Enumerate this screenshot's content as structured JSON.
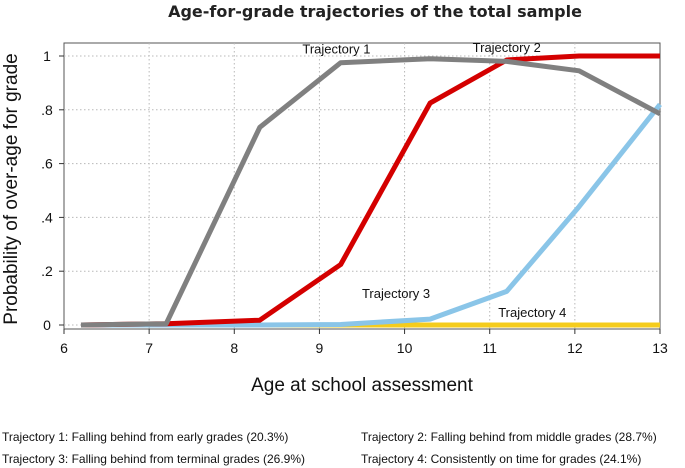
{
  "chart_data": {
    "type": "line",
    "title": "Age-for-grade trajectories of the total sample",
    "xlabel": "Age at school assessment",
    "ylabel": "Probability of over-age for grade",
    "xlim": [
      6,
      13
    ],
    "ylim": [
      0,
      1
    ],
    "xticks": [
      6,
      7,
      8,
      9,
      10,
      11,
      12,
      13
    ],
    "xtick_labels": [
      "6",
      "7",
      "8",
      "9",
      "10",
      "11",
      "12",
      "13"
    ],
    "yticks": [
      0,
      0.2,
      0.4,
      0.6,
      0.8,
      1
    ],
    "ytick_labels": [
      "0",
      ".2",
      ".4",
      ".6",
      ".8",
      "1"
    ],
    "grid": true,
    "series": [
      {
        "name": "Trajectory 1",
        "label_main": "Trajectory",
        "label_num": "1",
        "color": "#808080",
        "x": [
          6.2,
          7.2,
          8.3,
          9.25,
          10.3,
          11.2,
          12.05,
          13.0
        ],
        "y": [
          0.0,
          0.005,
          0.735,
          0.975,
          0.99,
          0.98,
          0.945,
          0.785
        ]
      },
      {
        "name": "Trajectory 2",
        "label_main": "Trajectory",
        "label_num": "2",
        "color": "#d40000",
        "x": [
          6.2,
          7.2,
          8.3,
          9.25,
          10.3,
          11.2,
          12.05,
          13.0
        ],
        "y": [
          0.0,
          0.005,
          0.018,
          0.225,
          0.825,
          0.985,
          1.0,
          1.0
        ]
      },
      {
        "name": "Trajectory 3",
        "label_main": "Trajectory",
        "label_num": "3",
        "color": "#8ac5e8",
        "x": [
          6.2,
          7.2,
          8.3,
          9.25,
          10.3,
          11.2,
          12.05,
          13.0
        ],
        "y": [
          0.0,
          0.0,
          0.0,
          0.002,
          0.022,
          0.125,
          0.44,
          0.82
        ]
      },
      {
        "name": "Trajectory 4",
        "label_main": "Trajectory",
        "label_num": "4",
        "color": "#f5cc1c",
        "x": [
          6.2,
          7.2,
          8.3,
          9.25,
          10.3,
          11.2,
          12.05,
          13.0
        ],
        "y": [
          0.0,
          0.0,
          0.0,
          0.0,
          0.0,
          0.0,
          0.0,
          0.0
        ]
      }
    ],
    "annotations": [
      {
        "series": "Trajectory 1",
        "x": 9.2,
        "y": 1.01
      },
      {
        "series": "Trajectory 2",
        "x": 11.2,
        "y": 1.015
      },
      {
        "series": "Trajectory 3",
        "x": 9.9,
        "y": 0.1
      },
      {
        "series": "Trajectory 4",
        "x": 11.5,
        "y": 0.03
      }
    ],
    "legend": [
      "Trajectory 1: Falling behind from early grades (20.3%)",
      "Trajectory 2: Falling behind from middle grades (28.7%)",
      "Trajectory 3: Falling behind from terminal grades (26.9%)",
      "Trajectory 4: Consistently on time for grades (24.1%)"
    ],
    "legend_position": "bottom"
  }
}
